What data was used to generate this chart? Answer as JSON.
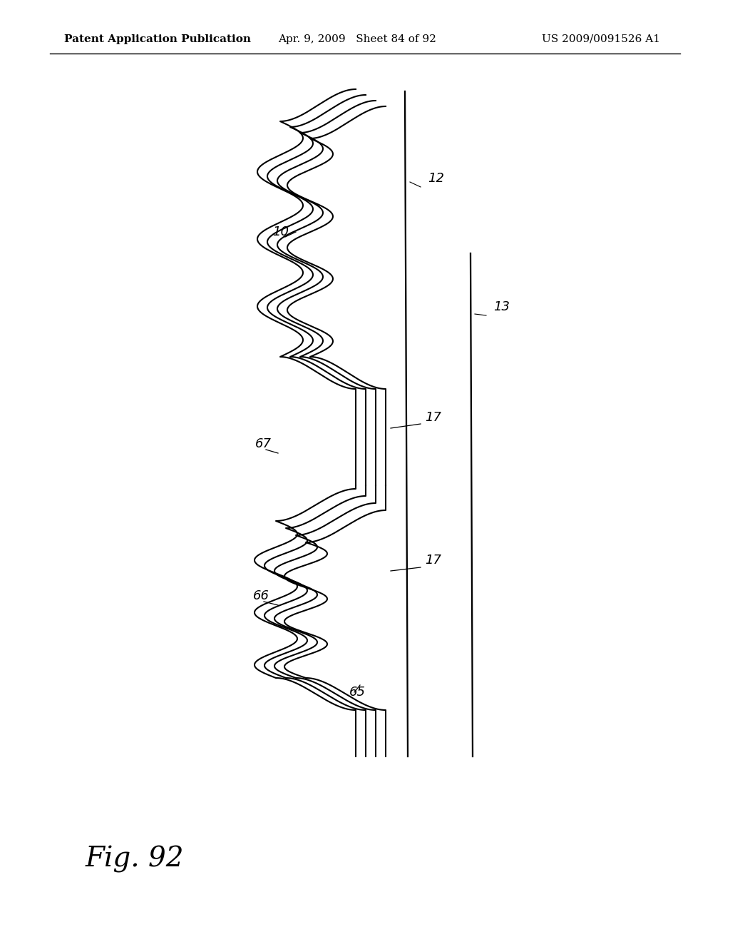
{
  "header_left": "Patent Application Publication",
  "header_mid": "Apr. 9, 2009   Sheet 84 of 92",
  "header_right": "US 2009/0091526 A1",
  "fig_label": "Fig. 92",
  "bg_color": "#ffffff",
  "line_color": "#000000",
  "header_fontsize": 11,
  "fig_fontsize": 28,
  "label_fontsize": 13
}
